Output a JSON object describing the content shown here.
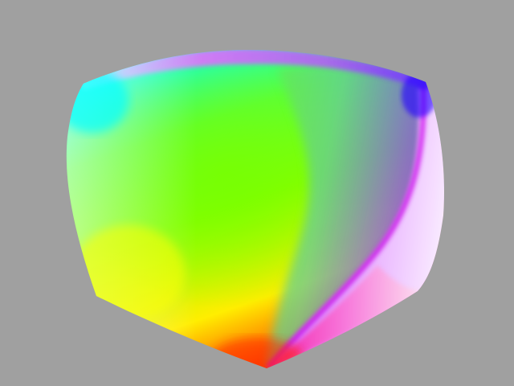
{
  "scene": {
    "background_color": "#a0a0a0",
    "object": "color-cube-icon",
    "face_colors": {
      "top_edge": "#ff66ff",
      "top_cyan": "#00ffff",
      "center_green": "#66ff00",
      "yellow": "#ffff00",
      "bottom_red": "#ff2200",
      "magenta": "#ff00cc",
      "blue": "#2200ff",
      "white_right": "#ffffff",
      "pale_left": "#ccffcc"
    }
  }
}
